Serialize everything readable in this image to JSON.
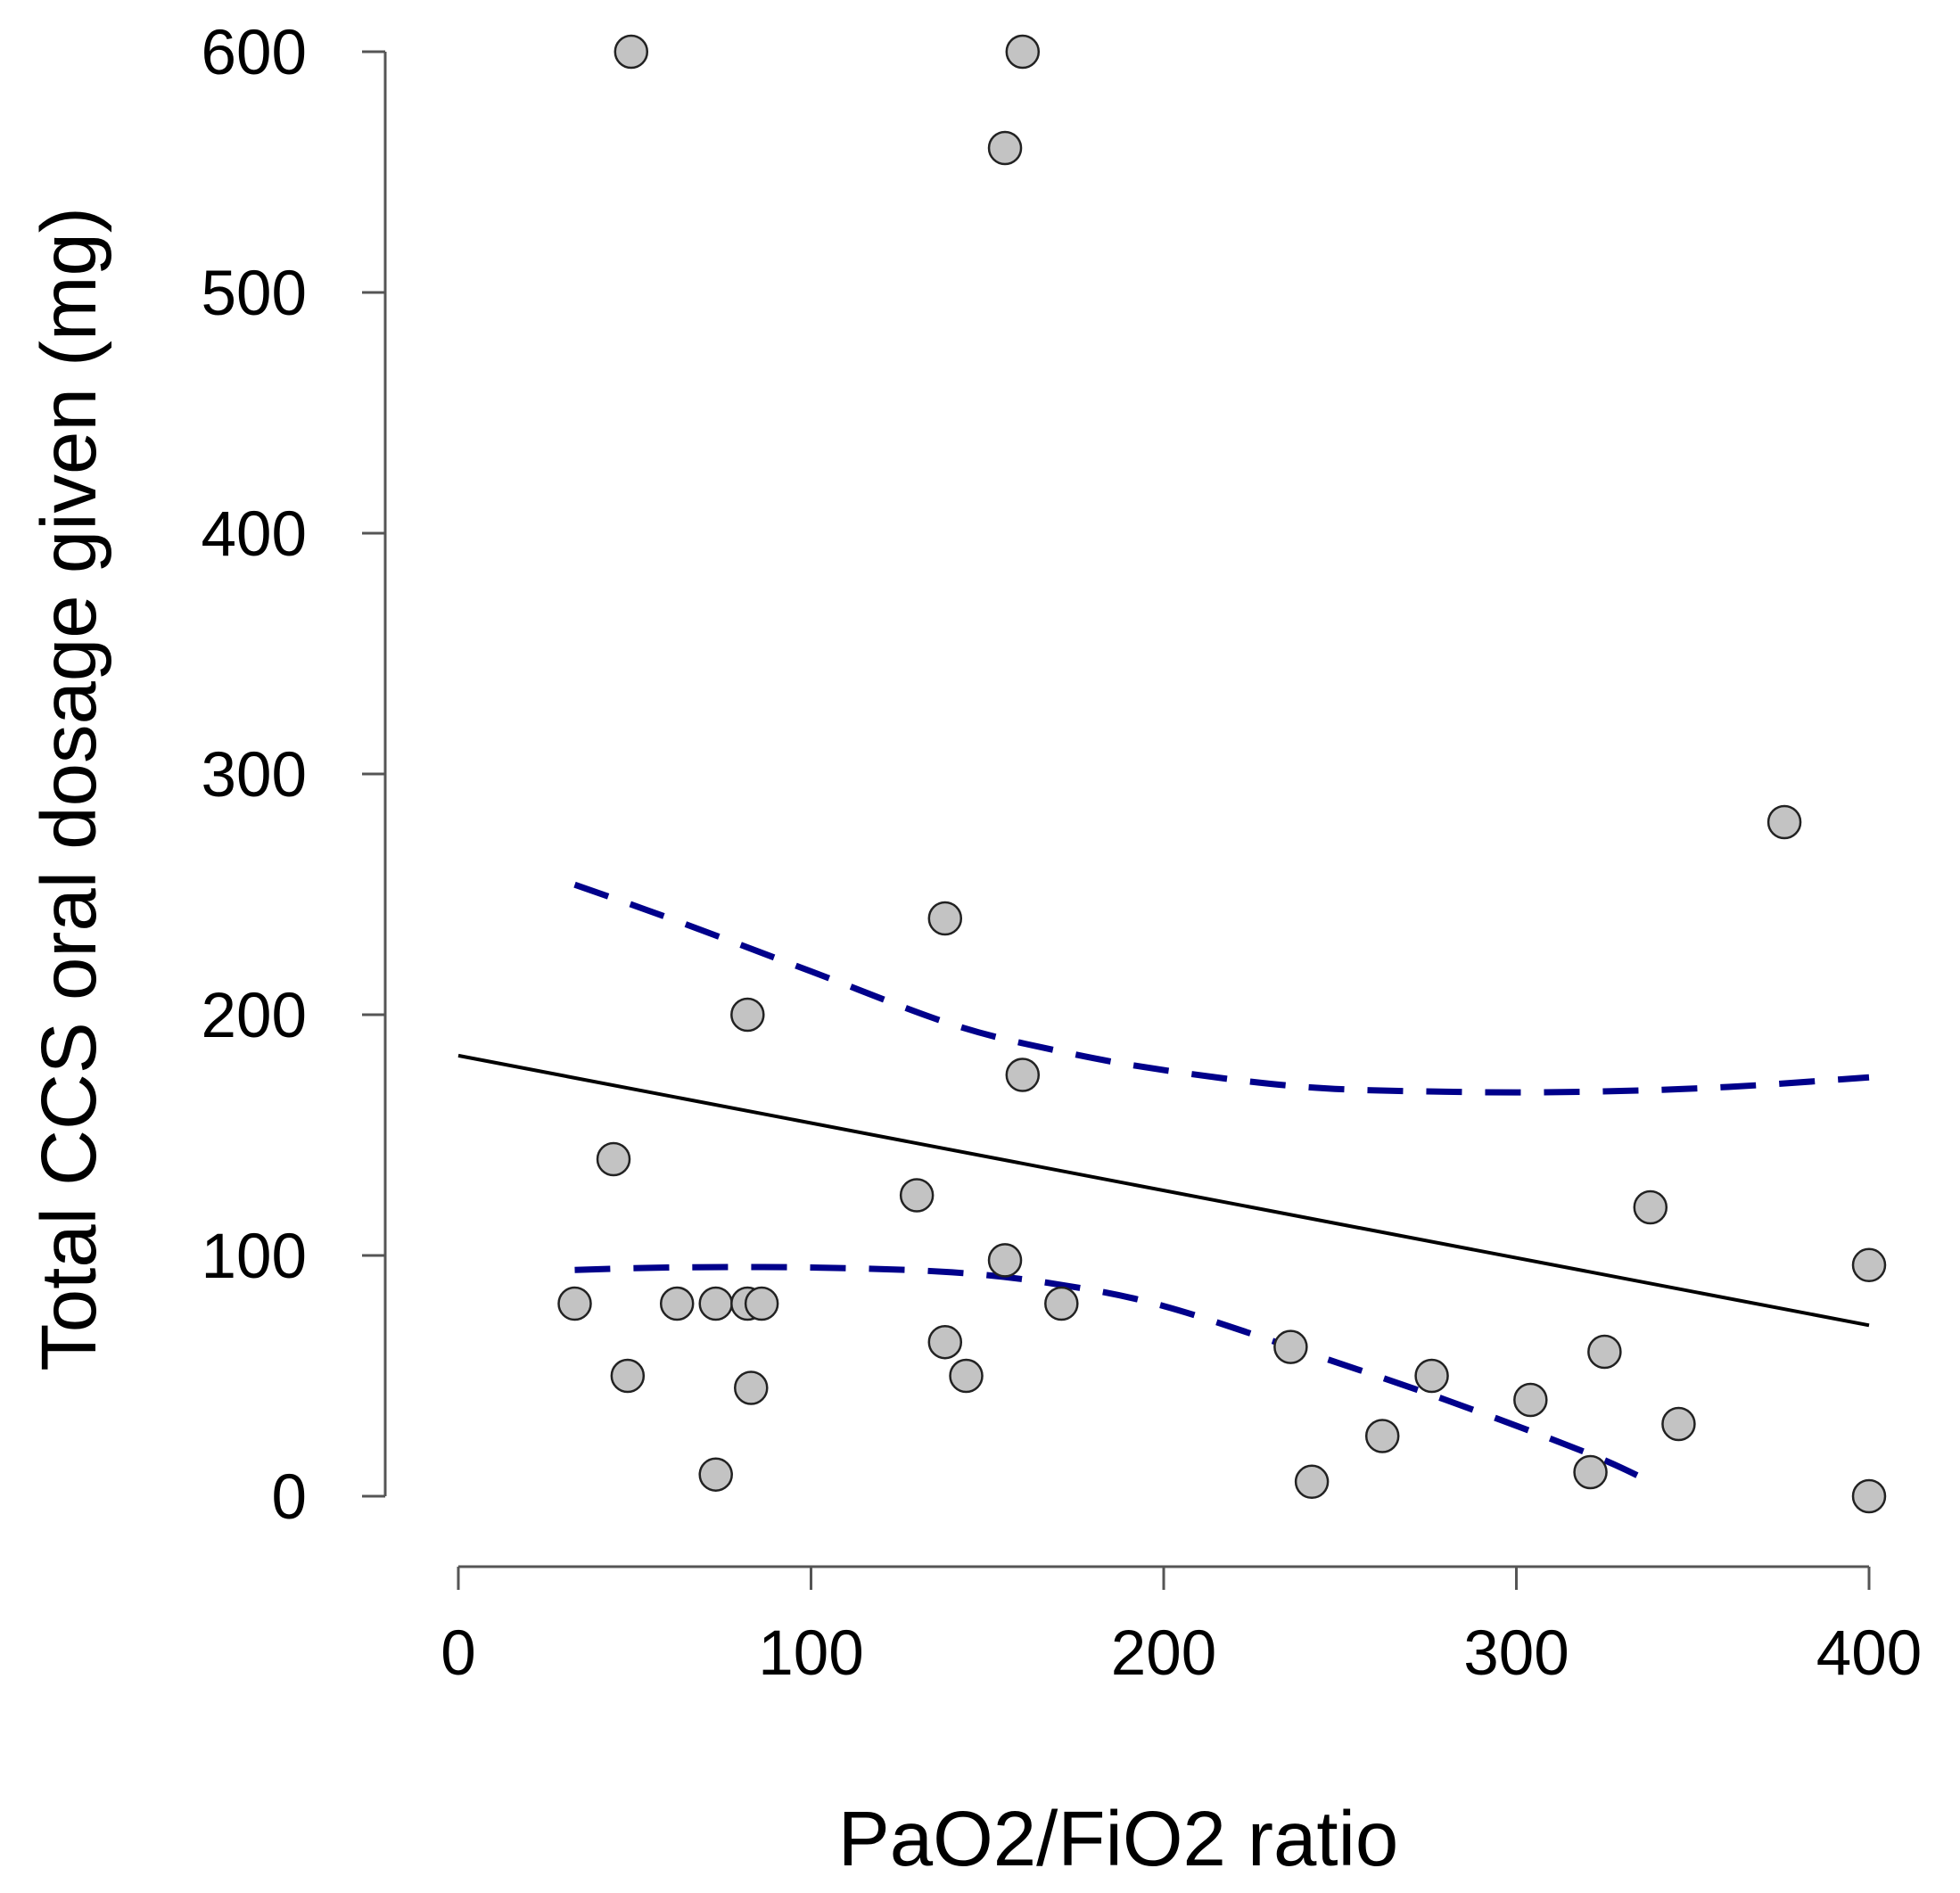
{
  "chart_data": {
    "type": "scatter",
    "title": "",
    "xlabel": "PaO2/FiO2 ratio",
    "ylabel": "Total CCS oral dosage given (mg)",
    "xlim": [
      0,
      400
    ],
    "ylim": [
      0,
      600
    ],
    "xticks": [
      "0",
      "100",
      "200",
      "300",
      "400"
    ],
    "yticks": [
      "0",
      "100",
      "200",
      "300",
      "400",
      "500",
      "600"
    ],
    "colors": {
      "points": "#c3c3c3",
      "fit": "#000000",
      "ci": "#00008b"
    },
    "points": [
      {
        "x": 33,
        "y": 80
      },
      {
        "x": 44,
        "y": 140
      },
      {
        "x": 48,
        "y": 50
      },
      {
        "x": 49,
        "y": 600
      },
      {
        "x": 62,
        "y": 80
      },
      {
        "x": 73,
        "y": 9
      },
      {
        "x": 73,
        "y": 80
      },
      {
        "x": 82,
        "y": 80
      },
      {
        "x": 82,
        "y": 200
      },
      {
        "x": 83,
        "y": 45
      },
      {
        "x": 86,
        "y": 80
      },
      {
        "x": 130,
        "y": 125
      },
      {
        "x": 138,
        "y": 240
      },
      {
        "x": 138,
        "y": 64
      },
      {
        "x": 144,
        "y": 50
      },
      {
        "x": 155,
        "y": 560
      },
      {
        "x": 155,
        "y": 98
      },
      {
        "x": 160,
        "y": 600
      },
      {
        "x": 160,
        "y": 175
      },
      {
        "x": 171,
        "y": 80
      },
      {
        "x": 236,
        "y": 62
      },
      {
        "x": 242,
        "y": 6
      },
      {
        "x": 262,
        "y": 25
      },
      {
        "x": 276,
        "y": 50
      },
      {
        "x": 304,
        "y": 40
      },
      {
        "x": 321,
        "y": 10
      },
      {
        "x": 325,
        "y": 60
      },
      {
        "x": 338,
        "y": 120
      },
      {
        "x": 346,
        "y": 30
      },
      {
        "x": 376,
        "y": 280
      },
      {
        "x": 400,
        "y": 96
      },
      {
        "x": 400,
        "y": 0
      }
    ],
    "fit_line": {
      "x": [
        0,
        400
      ],
      "y": [
        183,
        71
      ]
    },
    "ci_upper": {
      "x": [
        33,
        60,
        100,
        140,
        170,
        200,
        240,
        280,
        320,
        360,
        400
      ],
      "y": [
        254,
        240,
        218,
        196,
        185,
        177,
        170,
        168,
        168,
        170,
        174
      ]
    },
    "ci_lower": {
      "x": [
        33,
        60,
        100,
        140,
        170,
        200,
        240,
        280,
        320,
        338
      ],
      "y": [
        94,
        95,
        95,
        93,
        88,
        79,
        60,
        40,
        18,
        6
      ]
    }
  }
}
